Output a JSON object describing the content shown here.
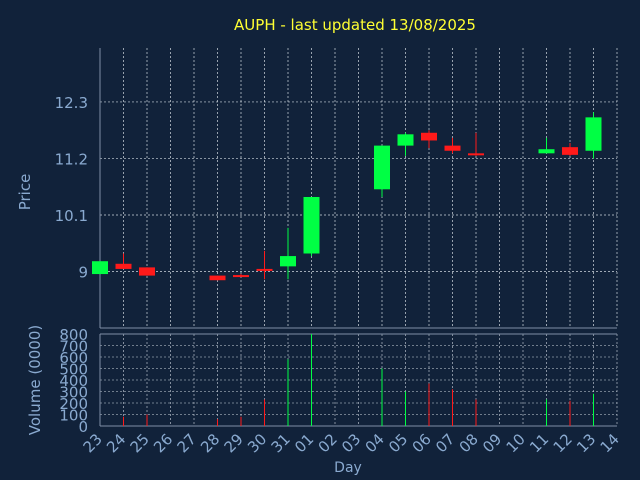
{
  "chart_data": {
    "type": "candlestick",
    "title": "AUPH - last updated 13/08/2025",
    "xlabel": "Day",
    "price_ylabel": "Price",
    "volume_ylabel": "Volume (0000)",
    "price_yticks": [
      "12.3",
      "11.2",
      "10.1",
      "9"
    ],
    "price_ytick_values": [
      12.3,
      11.2,
      10.1,
      9.0
    ],
    "price_ylim": [
      7.9,
      13.35
    ],
    "volume_yticks": [
      "800",
      "700",
      "600",
      "500",
      "400",
      "300",
      "200",
      "100",
      "0"
    ],
    "volume_ylim": [
      0,
      800
    ],
    "grid": true,
    "x_labels": [
      "23",
      "24",
      "25",
      "26",
      "27",
      "28",
      "29",
      "30",
      "31",
      "01",
      "02",
      "03",
      "04",
      "05",
      "06",
      "07",
      "08",
      "09",
      "10",
      "11",
      "12",
      "13",
      "14"
    ],
    "candles": [
      {
        "day": "23",
        "open": 8.95,
        "high": 9.2,
        "low": 8.95,
        "close": 9.2,
        "volume": 0,
        "direction": "up"
      },
      {
        "day": "24",
        "open": 9.15,
        "high": 9.35,
        "low": 9.05,
        "close": 9.05,
        "volume": 80,
        "direction": "down"
      },
      {
        "day": "25",
        "open": 9.08,
        "high": 9.08,
        "low": 8.92,
        "close": 8.92,
        "volume": 100,
        "direction": "down"
      },
      {
        "day": "28",
        "open": 8.92,
        "high": 8.92,
        "low": 8.83,
        "close": 8.83,
        "volume": 60,
        "direction": "down"
      },
      {
        "day": "29",
        "open": 8.93,
        "high": 8.95,
        "low": 8.91,
        "close": 8.91,
        "volume": 80,
        "direction": "down"
      },
      {
        "day": "30",
        "open": 9.05,
        "high": 9.4,
        "low": 8.85,
        "close": 9.05,
        "volume": 230,
        "direction": "down"
      },
      {
        "day": "31",
        "open": 9.1,
        "high": 9.85,
        "low": 8.85,
        "close": 9.3,
        "volume": 580,
        "direction": "up"
      },
      {
        "day": "01",
        "open": 9.35,
        "high": 10.45,
        "low": 9.3,
        "close": 10.45,
        "volume": 800,
        "direction": "up"
      },
      {
        "day": "04",
        "open": 10.6,
        "high": 11.45,
        "low": 10.45,
        "close": 11.45,
        "volume": 500,
        "direction": "up"
      },
      {
        "day": "05",
        "open": 11.45,
        "high": 11.7,
        "low": 11.25,
        "close": 11.67,
        "volume": 300,
        "direction": "up"
      },
      {
        "day": "06",
        "open": 11.7,
        "high": 11.75,
        "low": 11.4,
        "close": 11.55,
        "volume": 370,
        "direction": "down"
      },
      {
        "day": "07",
        "open": 11.45,
        "high": 11.6,
        "low": 11.3,
        "close": 11.35,
        "volume": 320,
        "direction": "down"
      },
      {
        "day": "08",
        "open": 11.3,
        "high": 11.7,
        "low": 11.25,
        "close": 11.27,
        "volume": 230,
        "direction": "down"
      },
      {
        "day": "11",
        "open": 11.3,
        "high": 11.6,
        "low": 11.3,
        "close": 11.38,
        "volume": 230,
        "direction": "up"
      },
      {
        "day": "12",
        "open": 11.42,
        "high": 11.5,
        "low": 11.25,
        "close": 11.27,
        "volume": 220,
        "direction": "down"
      },
      {
        "day": "13",
        "open": 11.35,
        "high": 12.1,
        "low": 11.2,
        "close": 12.0,
        "volume": 280,
        "direction": "up"
      }
    ]
  },
  "colors": {
    "background": "#11223a",
    "up": "#00ff44",
    "down": "#ff1a1a",
    "title": "#ffff33",
    "axis_text": "#8aaad0",
    "grid": "#d0d8e0"
  }
}
